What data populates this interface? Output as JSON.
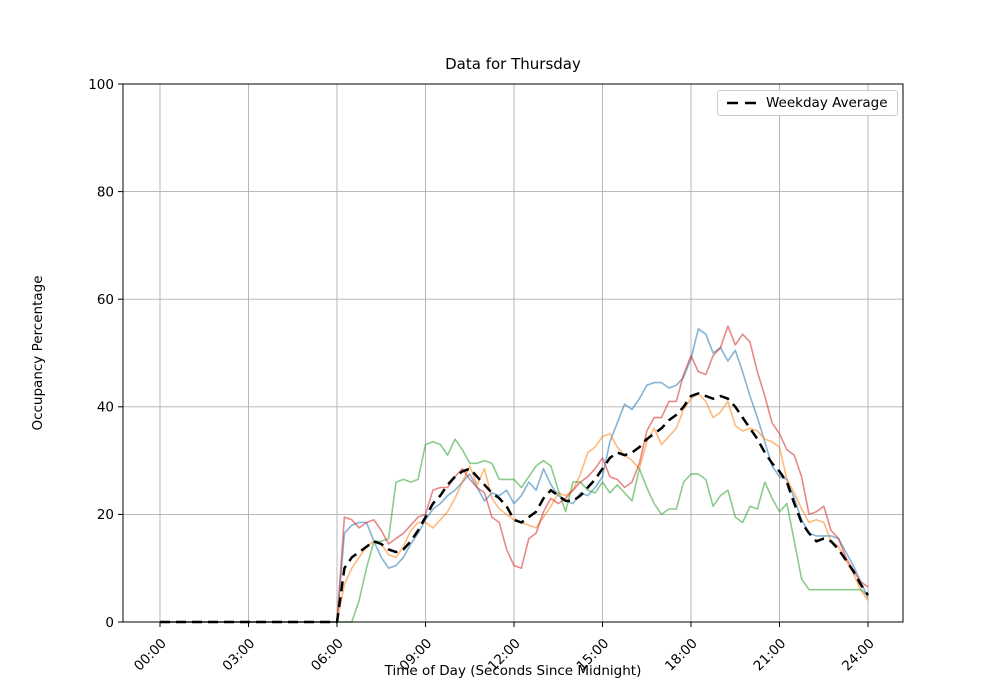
{
  "chart_data": {
    "type": "line",
    "title": "Data for Thursday",
    "xlabel": "Time of Day (Seconds Since Midnight)",
    "ylabel": "Occupancy Percentage",
    "ylim": [
      0,
      100
    ],
    "y_ticks": [
      0,
      20,
      40,
      60,
      80,
      100
    ],
    "x_ticks_hours": [
      0,
      3,
      6,
      9,
      12,
      15,
      18,
      21,
      24
    ],
    "x_tick_labels": [
      "00:00",
      "03:00",
      "06:00",
      "09:00",
      "12:00",
      "15:00",
      "18:00",
      "21:00",
      "24:00"
    ],
    "sample_interval_minutes": 15,
    "grid": true,
    "grid_color": "#b0b0b0",
    "legend": {
      "position": "upper right",
      "entries": [
        "Weekday Average"
      ]
    },
    "series": [
      {
        "id": "thursday-trace-1",
        "color": "#1f77b4",
        "opacity": 0.55,
        "width": 1.6,
        "dash": "solid",
        "values": [
          0,
          0,
          0,
          0,
          0,
          0,
          0,
          0,
          0,
          0,
          0,
          0,
          0,
          0,
          0,
          0,
          0,
          0,
          0,
          0,
          0,
          0,
          0,
          0,
          0,
          16.5,
          18,
          18.5,
          18.5,
          15,
          12,
          10,
          10.5,
          12,
          14.5,
          16.5,
          19,
          21,
          22,
          23.5,
          24.5,
          26,
          27.5,
          25,
          22.5,
          24,
          23.5,
          24.5,
          22,
          23.5,
          26,
          24.5,
          28.5,
          25.5,
          23.5,
          22.5,
          22,
          24,
          23.5,
          25,
          27,
          33.5,
          37,
          40.5,
          39.5,
          41.5,
          44,
          44.5,
          44.5,
          43.5,
          44,
          45.5,
          49,
          54.5,
          53.5,
          50,
          51,
          48.5,
          50.5,
          46.5,
          42,
          38,
          33.5,
          29,
          27,
          26.5,
          23,
          19,
          16.5,
          16,
          16,
          16,
          15.5,
          13,
          10.5,
          7.5,
          4.5
        ]
      },
      {
        "id": "thursday-trace-2",
        "color": "#ff7f0e",
        "opacity": 0.55,
        "width": 1.6,
        "dash": "solid",
        "values": [
          0,
          0,
          0,
          0,
          0,
          0,
          0,
          0,
          0,
          0,
          0,
          0,
          0,
          0,
          0,
          0,
          0,
          0,
          0,
          0,
          0,
          0,
          0,
          0,
          0,
          7,
          10,
          12,
          14,
          15,
          14.5,
          12.5,
          12,
          14,
          17,
          18.5,
          18.5,
          17.5,
          19,
          20.5,
          23,
          26,
          29,
          25.5,
          28.5,
          23,
          21,
          20,
          19,
          18.5,
          18,
          17.5,
          19.5,
          21.5,
          24,
          23.5,
          24.5,
          27.5,
          31.5,
          32.5,
          34.5,
          35,
          32.5,
          31,
          30,
          28.5,
          33.5,
          36,
          33,
          34.5,
          36,
          39.5,
          41.5,
          42.5,
          41,
          38,
          39,
          41,
          36.5,
          35.5,
          36,
          35.5,
          34,
          33.5,
          32.5,
          26.5,
          24,
          21,
          18.5,
          19,
          18.5,
          15,
          14,
          11.5,
          9,
          6,
          4
        ]
      },
      {
        "id": "thursday-trace-3",
        "color": "#2ca02c",
        "opacity": 0.55,
        "width": 1.6,
        "dash": "solid",
        "values": [
          0,
          0,
          0,
          0,
          0,
          0,
          0,
          0,
          0,
          0,
          0,
          0,
          0,
          0,
          0,
          0,
          0,
          0,
          0,
          0,
          0,
          0,
          0,
          0,
          0,
          0,
          0,
          4,
          10,
          15,
          15,
          15.5,
          26,
          26.5,
          26,
          26.5,
          33,
          33.5,
          33,
          31,
          34,
          32,
          29.5,
          29.5,
          30,
          29.5,
          26.5,
          26.5,
          26.5,
          25,
          27,
          29,
          30,
          29,
          24.5,
          20.5,
          26,
          26,
          24.5,
          24,
          26,
          24,
          25.5,
          24,
          22.5,
          28.5,
          25,
          22,
          20,
          21,
          21,
          26,
          27.5,
          27.5,
          26.5,
          21.5,
          23.5,
          24.5,
          19.5,
          18.5,
          21.5,
          21,
          26,
          23,
          20.5,
          22,
          15,
          8,
          6,
          6,
          6,
          6,
          6,
          6,
          6,
          6,
          5
        ]
      },
      {
        "id": "thursday-trace-4",
        "color": "#d62728",
        "opacity": 0.55,
        "width": 1.6,
        "dash": "solid",
        "values": [
          0,
          0,
          0,
          0,
          0,
          0,
          0,
          0,
          0,
          0,
          0,
          0,
          0,
          0,
          0,
          0,
          0,
          0,
          0,
          0,
          0,
          0,
          0,
          0,
          0,
          19.5,
          19,
          17.5,
          18.5,
          19,
          17,
          14.5,
          15.5,
          16.5,
          18,
          19.5,
          20,
          24.5,
          25,
          25,
          27,
          28.5,
          26.5,
          25,
          24,
          19.5,
          18.5,
          13.5,
          10.5,
          10,
          15.5,
          16.5,
          20.5,
          23,
          22,
          23,
          24.5,
          26,
          27,
          28.5,
          30.5,
          27,
          26.5,
          25,
          26,
          29.5,
          35.5,
          38,
          38,
          41,
          41,
          46,
          49.5,
          46.5,
          46,
          49.5,
          51,
          55,
          51.5,
          53.5,
          52,
          46.5,
          42,
          37,
          35,
          32,
          31,
          27,
          20,
          20.5,
          21.5,
          17,
          15.5,
          12,
          9.5,
          7.5,
          6.5
        ]
      },
      {
        "id": "weekday-average",
        "name": "Weekday Average",
        "color": "#000000",
        "opacity": 1,
        "width": 2.5,
        "dash": "dashed",
        "values": [
          0,
          0,
          0,
          0,
          0,
          0,
          0,
          0,
          0,
          0,
          0,
          0,
          0,
          0,
          0,
          0,
          0,
          0,
          0,
          0,
          0,
          0,
          0,
          0,
          0,
          10,
          12,
          13,
          14,
          15,
          14.5,
          13.5,
          13,
          13.5,
          15,
          17,
          19.5,
          22,
          23.5,
          25.5,
          27,
          28,
          28.5,
          27,
          25.5,
          24,
          23,
          21.5,
          19,
          18.5,
          19.5,
          20.5,
          23,
          24.5,
          23.5,
          22.5,
          22.5,
          23.5,
          25,
          26.5,
          28.5,
          30.5,
          31.5,
          31,
          31.5,
          32.5,
          34,
          35,
          36,
          37.5,
          38.5,
          40,
          42,
          42.5,
          42,
          41.5,
          42,
          41.5,
          40,
          38,
          36,
          34,
          31.5,
          29.5,
          28,
          26,
          22,
          18.5,
          16.5,
          15,
          15.5,
          15,
          13.5,
          11.5,
          9.5,
          7,
          5
        ]
      }
    ]
  }
}
